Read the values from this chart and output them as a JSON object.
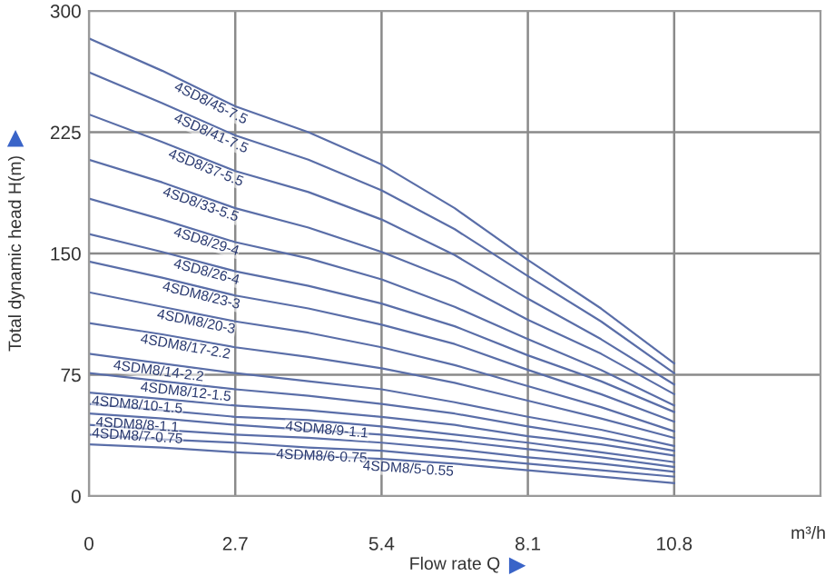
{
  "chart_data": {
    "type": "line",
    "xlabel": "Flow rate Q",
    "ylabel": "Total dynamic head H(m)",
    "annotations": [
      "m³/h"
    ],
    "x": [
      0,
      1.35,
      2.7,
      4.05,
      5.4,
      6.75,
      8.1,
      9.45,
      10.8
    ],
    "xlim": [
      0,
      13.5
    ],
    "xticks": [
      0,
      2.7,
      5.4,
      8.1,
      10.8
    ],
    "ylim": [
      0,
      300
    ],
    "yticks": [
      0,
      75,
      150,
      225,
      300
    ],
    "grid": true,
    "marker": "none",
    "line_style": "solid",
    "series": [
      {
        "name": "4SD8/45-7.5",
        "color": "#5a6ea8",
        "values": [
          283,
          263,
          241,
          225,
          205,
          178,
          146,
          116,
          82
        ]
      },
      {
        "name": "4SD8/41-7.5",
        "color": "#5a6ea8",
        "values": [
          262,
          243,
          223,
          208,
          189,
          165,
          136,
          108,
          76
        ]
      },
      {
        "name": "4SD8/37-5.5",
        "color": "#5a6ea8",
        "values": [
          236,
          219,
          201,
          188,
          171,
          149,
          122,
          97,
          69
        ]
      },
      {
        "name": "4SD8/33-5.5",
        "color": "#5a6ea8",
        "values": [
          208,
          194,
          178,
          166,
          151,
          133,
          109,
          88,
          63
        ]
      },
      {
        "name": "4SD8/29-4",
        "color": "#5a6ea8",
        "values": [
          184,
          171,
          157,
          147,
          134,
          117,
          97,
          78,
          56
        ]
      },
      {
        "name": "4SD8/26-4",
        "color": "#5a6ea8",
        "values": [
          162,
          151,
          139,
          130,
          119,
          105,
          87,
          71,
          52
        ]
      },
      {
        "name": "4SDM8/23-3",
        "color": "#5a6ea8",
        "values": [
          145,
          135,
          124,
          116,
          106,
          94,
          78,
          63,
          46
        ]
      },
      {
        "name": "4SDM8/20-3",
        "color": "#5a6ea8",
        "values": [
          126,
          117,
          108,
          101,
          92,
          81,
          68,
          55,
          40
        ]
      },
      {
        "name": "4SDM8/17-2.2",
        "color": "#5a6ea8",
        "values": [
          107,
          100,
          92,
          86,
          79,
          70,
          59,
          48,
          36
        ]
      },
      {
        "name": "4SDM8/14-2.2",
        "color": "#5a6ea8",
        "values": [
          88,
          82,
          76,
          71,
          66,
          58,
          49,
          41,
          31
        ]
      },
      {
        "name": "4SDM8/12-1.5",
        "color": "#5a6ea8",
        "values": [
          76,
          71,
          66,
          62,
          57,
          51,
          43,
          36,
          28
        ]
      },
      {
        "name": "4SDM8/10-1.5",
        "color": "#5a6ea8",
        "values": [
          64,
          60,
          56,
          53,
          49,
          44,
          37,
          32,
          25
        ]
      },
      {
        "name": "4SDM8/9-1.1",
        "color": "#5a6ea8",
        "values": [
          57,
          53,
          49,
          47,
          43,
          38,
          33,
          27,
          21
        ]
      },
      {
        "name": "4SDM8/8-1.1",
        "color": "#5a6ea8",
        "values": [
          51,
          48,
          44,
          41,
          38,
          34,
          29,
          24,
          18
        ]
      },
      {
        "name": "4SDM8/7-0.75",
        "color": "#5a6ea8",
        "values": [
          44,
          41,
          38,
          36,
          33,
          29,
          24,
          20,
          15
        ]
      },
      {
        "name": "4SDM8/6-0.75",
        "color": "#5a6ea8",
        "values": [
          38,
          35,
          33,
          30,
          28,
          24,
          20,
          16,
          12
        ]
      },
      {
        "name": "4SDM8/5-0.55",
        "color": "#5a6ea8",
        "values": [
          32,
          30,
          27,
          25,
          23,
          20,
          16,
          12,
          8
        ]
      }
    ]
  }
}
